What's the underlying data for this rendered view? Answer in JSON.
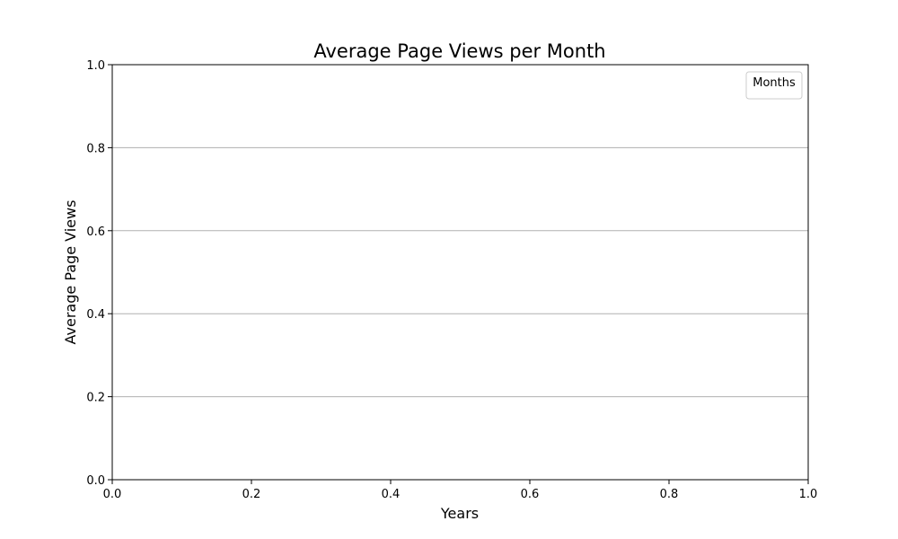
{
  "chart_data": {
    "type": "line",
    "title": "Average Page Views per Month",
    "xlabel": "Years",
    "ylabel": "Average Page Views",
    "xlim": [
      0,
      1
    ],
    "ylim": [
      0,
      1
    ],
    "x_ticks": [
      "0.0",
      "0.2",
      "0.4",
      "0.6",
      "0.8",
      "1.0"
    ],
    "y_ticks": [
      "0.0",
      "0.2",
      "0.4",
      "0.6",
      "0.8",
      "1.0"
    ],
    "x_tick_values": [
      0,
      0.2,
      0.4,
      0.6,
      0.8,
      1.0
    ],
    "y_tick_values": [
      0,
      0.2,
      0.4,
      0.6,
      0.8,
      1.0
    ],
    "grid": "horizontal",
    "legend": {
      "title": "Months",
      "placement": "top-right",
      "entries": []
    },
    "series": [],
    "colors": {
      "grid": "#b0b0b0",
      "axes": "#000000",
      "legend_border": "#cccccc"
    }
  }
}
